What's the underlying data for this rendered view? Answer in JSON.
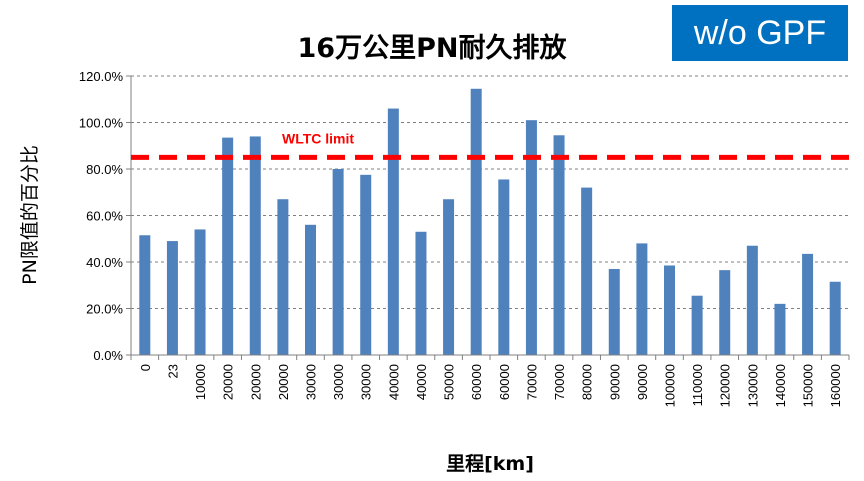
{
  "badge": {
    "text": "w/o GPF"
  },
  "colors": {
    "bar": "#4f81bd",
    "limit": "#ff0000",
    "badge": "#0070c0",
    "grid": "#808080"
  },
  "chart_data": {
    "type": "bar",
    "title": "16万公里PN耐久排放",
    "xlabel": "里程[km]",
    "ylabel": "PN限值的百分比",
    "ylim": [
      0,
      120
    ],
    "ytick_values": [
      0,
      20,
      40,
      60,
      80,
      100,
      120
    ],
    "ytick_labels": [
      "0.0%",
      "20.0%",
      "40.0%",
      "60.0%",
      "80.0%",
      "100.0%",
      "120.0%"
    ],
    "grid": true,
    "categories": [
      "0",
      "23",
      "10000",
      "20000",
      "20000",
      "20000",
      "30000",
      "30000",
      "30000",
      "40000",
      "40000",
      "50000",
      "60000",
      "60000",
      "70000",
      "70000",
      "80000",
      "90000",
      "90000",
      "100000",
      "110000",
      "120000",
      "130000",
      "140000",
      "150000",
      "160000"
    ],
    "values": [
      51.5,
      49,
      54,
      93.5,
      94,
      67,
      56,
      80,
      77.5,
      106,
      53,
      67,
      114.5,
      75.5,
      101,
      94.5,
      72,
      37,
      48,
      38.5,
      25.5,
      36.5,
      47,
      22,
      43.5,
      31.5
    ],
    "reference_line": {
      "label": "WLTC limit",
      "value": 85,
      "style": "dashed"
    }
  }
}
